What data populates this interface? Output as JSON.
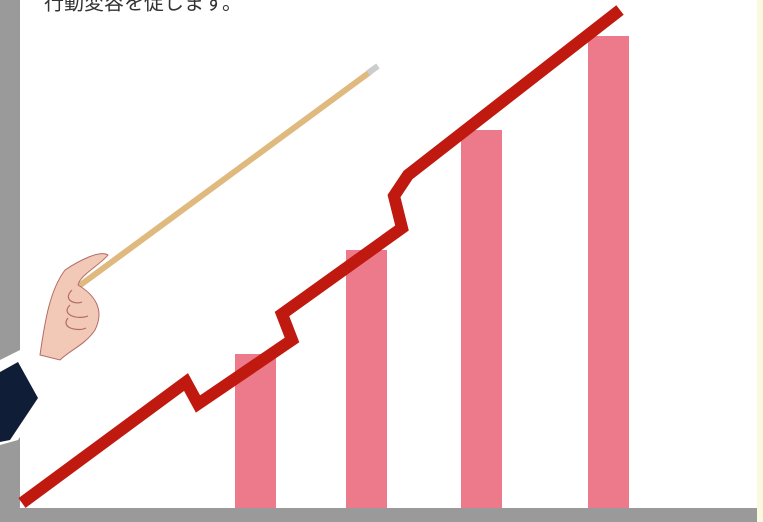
{
  "caption": "行動変容を促します。"
}
